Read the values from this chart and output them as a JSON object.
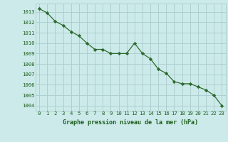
{
  "x": [
    0,
    1,
    2,
    3,
    4,
    5,
    6,
    7,
    8,
    9,
    10,
    11,
    12,
    13,
    14,
    15,
    16,
    17,
    18,
    19,
    20,
    21,
    22,
    23
  ],
  "y": [
    1013.3,
    1012.9,
    1012.1,
    1011.7,
    1011.1,
    1010.7,
    1010.0,
    1009.4,
    1009.4,
    1009.0,
    1009.0,
    1009.0,
    1010.0,
    1009.0,
    1008.5,
    1007.5,
    1007.1,
    1006.3,
    1006.1,
    1006.1,
    1005.8,
    1005.5,
    1005.0,
    1004.0
  ],
  "line_color": "#2d6a2d",
  "marker": "D",
  "marker_size": 2.2,
  "bg_color": "#cceaea",
  "grid_color": "#aacccc",
  "xlabel": "Graphe pression niveau de la mer (hPa)",
  "xlabel_color": "#1a5c1a",
  "tick_color": "#1a5c1a",
  "ylim": [
    1003.5,
    1013.8
  ],
  "xlim": [
    -0.5,
    23.5
  ],
  "yticks": [
    1004,
    1005,
    1006,
    1007,
    1008,
    1009,
    1010,
    1011,
    1012,
    1013
  ],
  "xticks": [
    0,
    1,
    2,
    3,
    4,
    5,
    6,
    7,
    8,
    9,
    10,
    11,
    12,
    13,
    14,
    15,
    16,
    17,
    18,
    19,
    20,
    21,
    22,
    23
  ],
  "xtick_labels": [
    "0",
    "1",
    "2",
    "3",
    "4",
    "5",
    "6",
    "7",
    "8",
    "9",
    "10",
    "11",
    "12",
    "13",
    "14",
    "15",
    "16",
    "17",
    "18",
    "19",
    "20",
    "21",
    "22",
    "23"
  ]
}
